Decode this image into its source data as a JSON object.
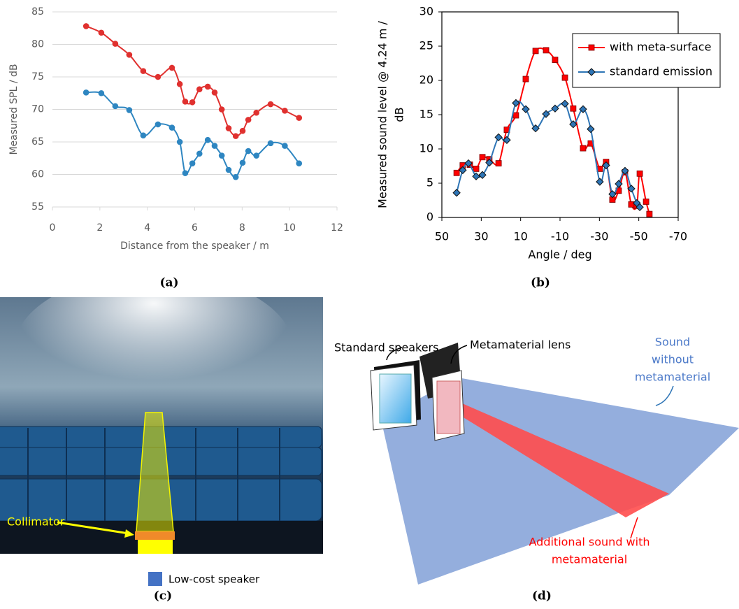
{
  "chart_data": [
    {
      "type": "line",
      "ylabel": "Measured SPL / dB",
      "xlabel": "Distance from the speaker / m",
      "xlim": [
        0,
        12
      ],
      "xticks": [
        0,
        2,
        4,
        6,
        8,
        10,
        12
      ],
      "ylim": [
        55,
        85
      ],
      "yticks": [
        55,
        60,
        65,
        70,
        75,
        80,
        85
      ],
      "grid": true,
      "frame": false,
      "x": [
        1.42,
        2.06,
        2.65,
        3.24,
        3.83,
        4.45,
        5.04,
        5.37,
        5.6,
        5.9,
        6.2,
        6.55,
        6.84,
        7.14,
        7.43,
        7.73,
        8.02,
        8.26,
        8.6,
        9.2,
        9.8,
        10.4
      ],
      "series": [
        {
          "color": "#e0312f",
          "marker": "circle",
          "values": [
            82.8,
            81.8,
            80.1,
            78.4,
            75.9,
            75.0,
            76.4,
            73.9,
            71.2,
            71.1,
            73.1,
            73.5,
            72.6,
            70.0,
            67.1,
            65.9,
            66.7,
            68.4,
            69.5,
            70.8,
            69.8,
            68.7
          ]
        },
        {
          "color": "#2e86c1",
          "marker": "circle",
          "values": [
            72.6,
            72.5,
            70.5,
            69.9,
            66.0,
            67.7,
            67.2,
            65.0,
            60.2,
            61.7,
            63.2,
            65.3,
            64.4,
            62.9,
            60.7,
            59.6,
            61.8,
            63.6,
            62.9,
            64.8,
            64.4,
            61.7
          ]
        }
      ]
    },
    {
      "type": "line",
      "ylabel": [
        "Measured sound level @ 4.24 m /",
        "dB"
      ],
      "xlabel": "Angle / deg",
      "xlim": [
        50,
        -70
      ],
      "xticks": [
        50,
        30,
        10,
        -10,
        -30,
        -50,
        -70
      ],
      "ylim": [
        0,
        30
      ],
      "yticks": [
        0,
        5,
        10,
        15,
        20,
        25,
        30
      ],
      "grid": false,
      "frame": true,
      "legend": "upper right",
      "series": [
        {
          "name": "with meta-surface",
          "color": "#ff0000",
          "marker": "square",
          "x": [
            42.5,
            39.4,
            35.8,
            32.6,
            29.4,
            25.9,
            21.2,
            17.0,
            12.4,
            7.4,
            2.4,
            -2.9,
            -7.5,
            -12.5,
            -16.7,
            -21.7,
            -25.6,
            -30.2,
            -33.4,
            -36.6,
            -39.8,
            -43.0,
            -46.2,
            -49.0,
            -50.5,
            -53.7,
            -55.4
          ],
          "values": [
            6.5,
            7.6,
            7.7,
            7.1,
            8.8,
            8.5,
            7.9,
            12.8,
            14.9,
            20.2,
            24.3,
            24.4,
            23.0,
            20.4,
            15.9,
            10.1,
            10.8,
            7.1,
            8.1,
            2.6,
            3.9,
            6.6,
            1.9,
            1.7,
            6.4,
            2.3,
            0.5
          ]
        },
        {
          "name": "standard emission",
          "color": "#2e75b6",
          "marker": "diamond",
          "x": [
            42.5,
            39.4,
            36.5,
            32.6,
            29.4,
            25.9,
            21.2,
            17.0,
            12.4,
            7.4,
            2.4,
            -2.9,
            -7.5,
            -12.5,
            -16.7,
            -21.7,
            -25.6,
            -30.2,
            -33.4,
            -36.6,
            -39.8,
            -43.0,
            -46.2,
            -49.0,
            -50.5
          ],
          "values": [
            3.6,
            6.9,
            7.9,
            6.0,
            6.2,
            8.0,
            11.7,
            11.3,
            16.7,
            15.8,
            13.0,
            15.1,
            15.9,
            16.6,
            13.6,
            15.8,
            12.9,
            5.2,
            7.6,
            3.4,
            4.9,
            6.8,
            4.2,
            2.1,
            1.5
          ]
        }
      ]
    }
  ],
  "figure": {
    "captions": [
      "(a)",
      "(b)",
      "(c)",
      "(d)"
    ],
    "panel_c": {
      "collimator": "Collimator",
      "speaker": "Low-cost speaker"
    },
    "panel_d": {
      "standard": "Standard speakers",
      "lens": "Metamaterial lens",
      "without": [
        "Sound",
        "without",
        "metamaterial"
      ],
      "additional": [
        "Additional sound with",
        "metamaterial"
      ]
    }
  }
}
